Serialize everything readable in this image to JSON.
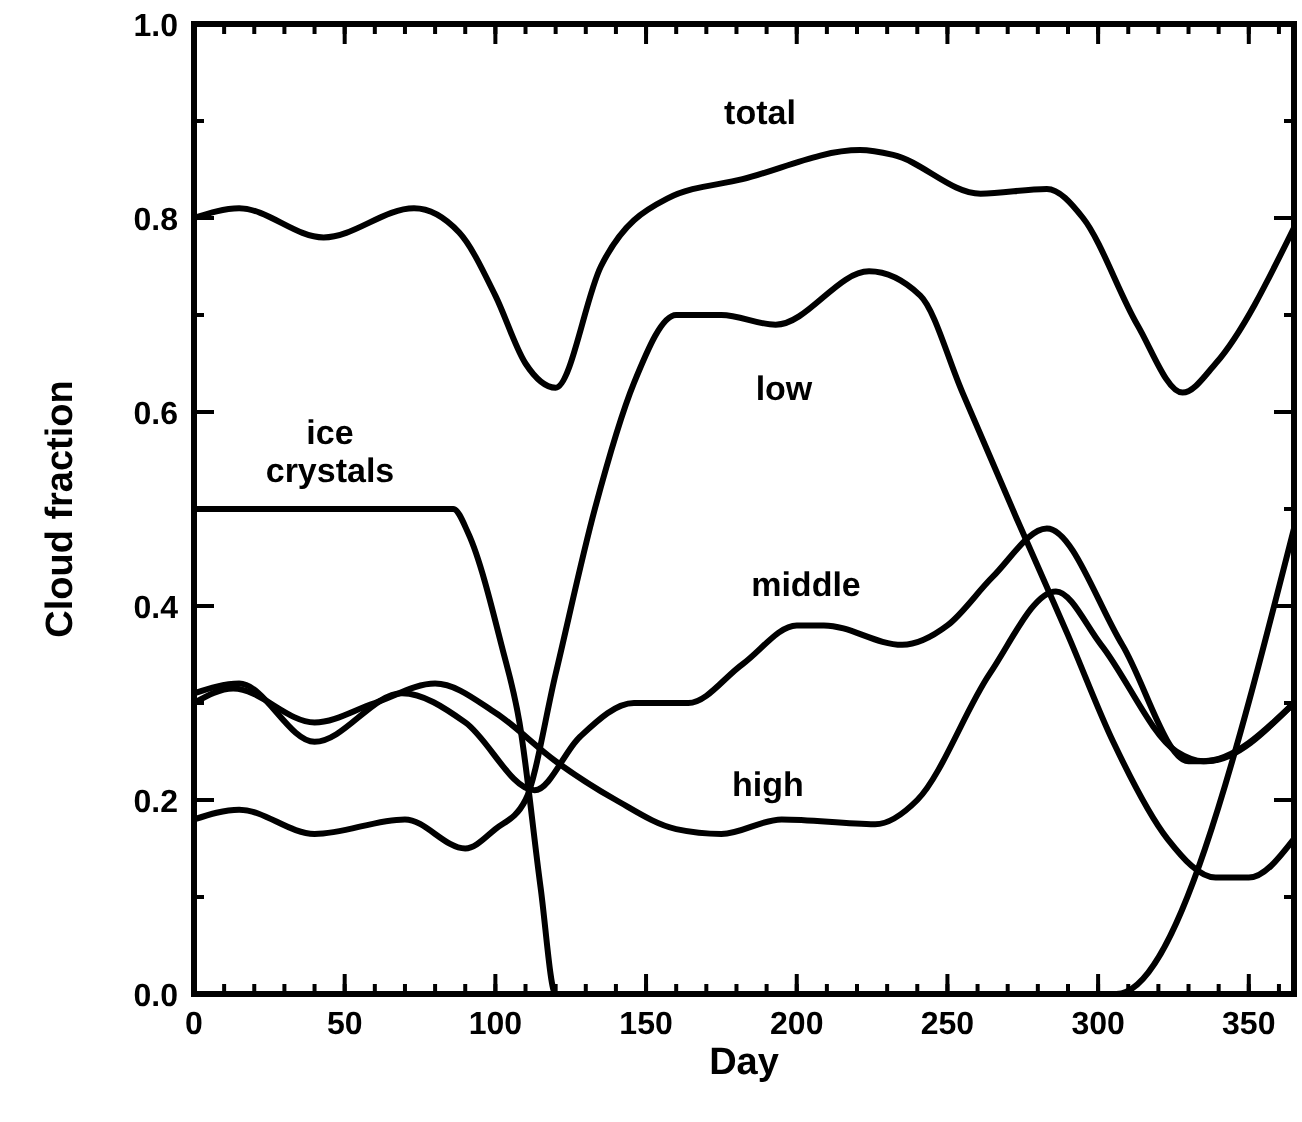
{
  "chart_data": {
    "type": "line",
    "xlabel": "Day",
    "ylabel": "Cloud fraction",
    "xlim": [
      0,
      365
    ],
    "ylim": [
      0,
      1
    ],
    "xticks": [
      0,
      50,
      100,
      150,
      200,
      250,
      300,
      350
    ],
    "yticks": [
      {
        "value": 0,
        "label": "0.0"
      },
      {
        "value": 0.2,
        "label": "0.2"
      },
      {
        "value": 0.4,
        "label": "0.4"
      },
      {
        "value": 0.6,
        "label": "0.6"
      },
      {
        "value": 0.8,
        "label": "0.8"
      },
      {
        "value": 1,
        "label": "1.0"
      }
    ],
    "grid": false,
    "legend": false,
    "marker": "none",
    "line_style": "solid",
    "series": [
      {
        "name": "total",
        "color": "#000000",
        "x": [
          0,
          15,
          43,
          73,
          88,
          100,
          110,
          120,
          135,
          157,
          182,
          221,
          232,
          261,
          283,
          295,
          313,
          328,
          339,
          365
        ],
        "values": [
          0.8,
          0.81,
          0.78,
          0.81,
          0.785,
          0.72,
          0.65,
          0.625,
          0.75,
          0.82,
          0.84,
          0.87,
          0.865,
          0.825,
          0.83,
          0.8,
          0.69,
          0.62,
          0.65,
          0.79
        ]
      },
      {
        "name": "low",
        "color": "#000000",
        "x": [
          0,
          15,
          40,
          70,
          90,
          100,
          110,
          120,
          133,
          146,
          160,
          175,
          193,
          224,
          241,
          255,
          273,
          290,
          305,
          323,
          339,
          350,
          365
        ],
        "values": [
          0.18,
          0.19,
          0.165,
          0.18,
          0.15,
          0.17,
          0.2,
          0.33,
          0.5,
          0.63,
          0.7,
          0.7,
          0.69,
          0.745,
          0.72,
          0.62,
          0.49,
          0.37,
          0.26,
          0.16,
          0.12,
          0.12,
          0.16
        ]
      },
      {
        "name": "middle",
        "color": "#000000",
        "x": [
          0,
          15,
          40,
          69,
          90,
          113,
          128,
          146,
          164,
          182,
          200,
          209,
          235,
          250,
          265,
          283,
          308,
          330,
          336,
          365
        ],
        "values": [
          0.31,
          0.32,
          0.26,
          0.31,
          0.28,
          0.21,
          0.265,
          0.3,
          0.3,
          0.34,
          0.38,
          0.38,
          0.36,
          0.38,
          0.43,
          0.48,
          0.36,
          0.24,
          0.24,
          0.3
        ]
      },
      {
        "name": "high",
        "color": "#000000",
        "x": [
          0,
          13,
          40,
          60,
          80,
          100,
          120,
          140,
          160,
          175,
          195,
          226,
          240,
          264,
          286,
          301,
          326,
          335,
          365
        ],
        "values": [
          0.3,
          0.315,
          0.28,
          0.3,
          0.32,
          0.29,
          0.24,
          0.2,
          0.17,
          0.165,
          0.18,
          0.175,
          0.2,
          0.33,
          0.415,
          0.36,
          0.25,
          0.24,
          0.3
        ]
      },
      {
        "name": "ice crystals",
        "color": "#000000",
        "x": [
          0,
          86,
          91,
          102,
          108,
          115,
          120,
          306,
          365
        ],
        "values": [
          0.5,
          0.5,
          0.475,
          0.36,
          0.28,
          0.11,
          0,
          0,
          0.48
        ]
      }
    ]
  }
}
